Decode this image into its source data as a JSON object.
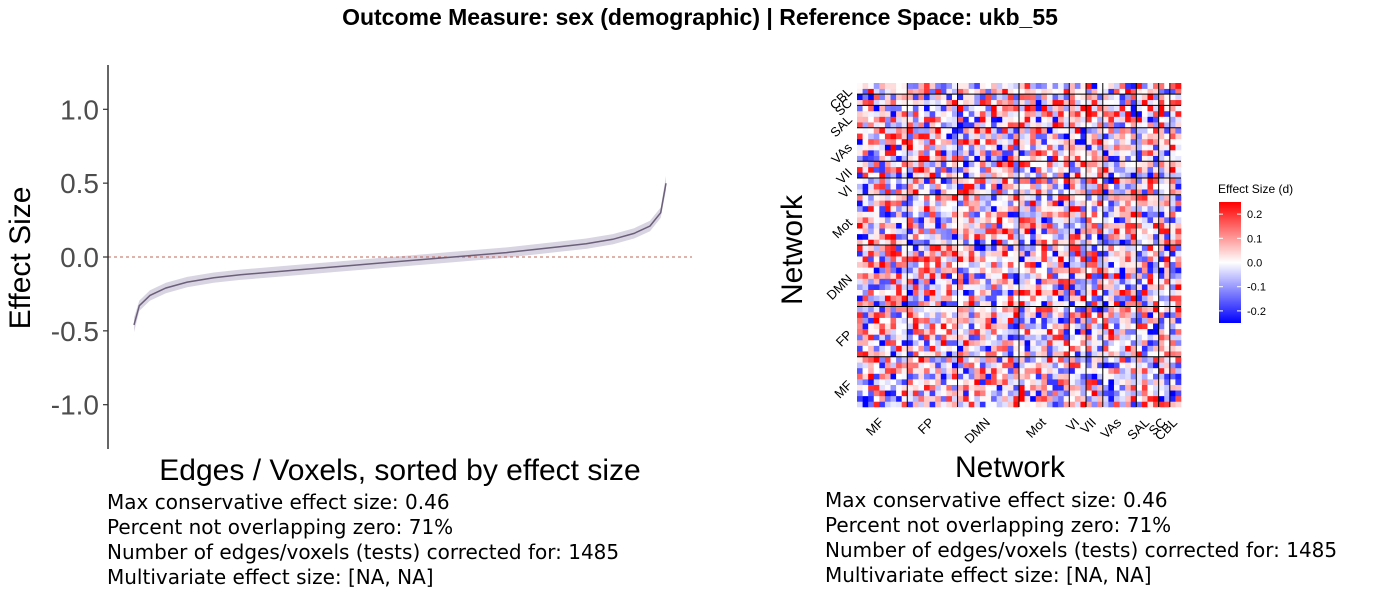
{
  "title": "Outcome Measure: sex (demographic)   |  Reference Space: ukb_55",
  "chart_data": [
    {
      "type": "line",
      "xlabel": "Edges / Voxels, sorted by effect size",
      "ylabel": "Effect Size",
      "ylim": [
        -1.3,
        1.3
      ],
      "yticks": [
        "-1.0",
        "-0.5",
        "0.0",
        "0.5",
        "1.0"
      ],
      "ytick_values": [
        -1.0,
        -0.5,
        0.0,
        0.5,
        1.0
      ],
      "n_points": 1485,
      "reference_line": 0.0,
      "curve_x_fraction": [
        0.0,
        0.01,
        0.03,
        0.06,
        0.1,
        0.15,
        0.2,
        0.3,
        0.4,
        0.5,
        0.6,
        0.7,
        0.8,
        0.85,
        0.9,
        0.94,
        0.97,
        0.99,
        1.0
      ],
      "curve_y": [
        -0.46,
        -0.33,
        -0.26,
        -0.21,
        -0.17,
        -0.14,
        -0.12,
        -0.09,
        -0.06,
        -0.03,
        0.0,
        0.03,
        0.07,
        0.09,
        0.12,
        0.16,
        0.21,
        0.3,
        0.5
      ],
      "band_halfwidth": 0.035,
      "colors": {
        "line": "#6b5f7a",
        "band": "#d9d4e2",
        "reference": "#c0645a"
      }
    },
    {
      "type": "heatmap",
      "xlabel": "Network",
      "ylabel": "Network",
      "x_categories": [
        "MF",
        "FP",
        "DMN",
        "Mot",
        "VI",
        "VII",
        "VAs",
        "SAL",
        "SC",
        "CBL"
      ],
      "y_categories": [
        "MF",
        "FP",
        "DMN",
        "Mot",
        "VI",
        "VII",
        "VAs",
        "SAL",
        "SC",
        "CBL"
      ],
      "block_sizes": [
        9,
        9,
        11,
        9,
        3,
        3,
        6,
        4,
        2,
        2
      ],
      "legend": {
        "title": "Effect Size (d)",
        "ticks": [
          "0.2",
          "0.1",
          "0.0",
          "-0.1",
          "-0.2"
        ],
        "tick_values": [
          0.2,
          0.1,
          0.0,
          -0.1,
          -0.2
        ],
        "range": [
          -0.25,
          0.25
        ]
      },
      "colors": {
        "high": "#ff0000",
        "mid": "#ffffff",
        "low": "#0000ff"
      }
    }
  ],
  "stats_left": {
    "line1": "Max conservative effect size: 0.46",
    "line2": "Percent not overlapping zero: 71%",
    "line3": "Number of edges/voxels (tests) corrected for: 1485",
    "line4": "Multivariate effect size:  [NA, NA]"
  },
  "stats_right": {
    "line1": "Max conservative effect size: 0.46",
    "line2": "Percent not overlapping zero: 71%",
    "line3": "Number of edges/voxels (tests) corrected for: 1485",
    "line4": "Multivariate effect size:  [NA, NA]"
  }
}
